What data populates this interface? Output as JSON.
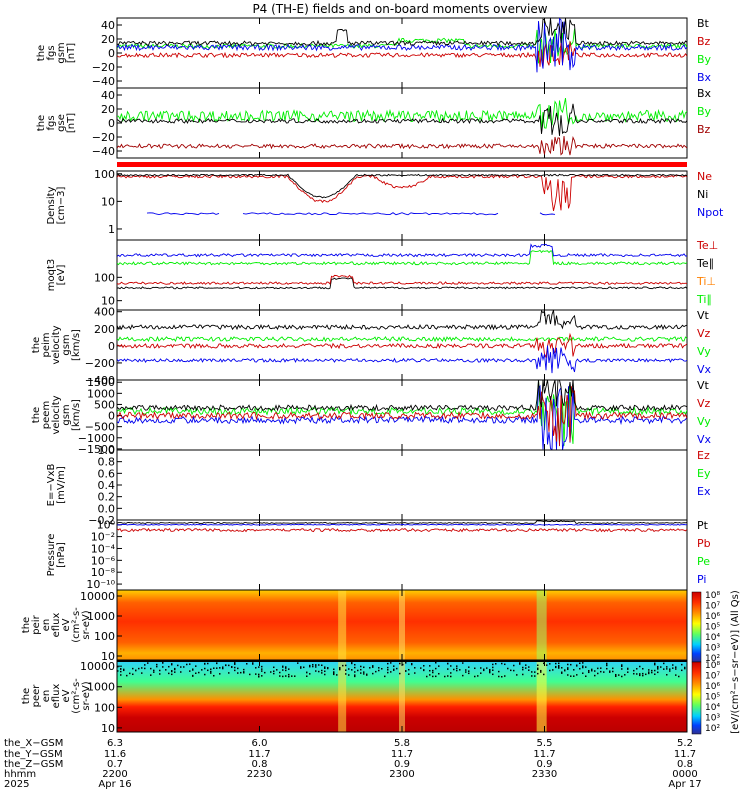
{
  "title": "P4 (TH-E) fields and on-board moments overview",
  "colors": {
    "black": "#000000",
    "red": "#cc0000",
    "dark_red": "#a00000",
    "green": "#00ee00",
    "blue": "#0000ee",
    "dark_blue": "#0000ff",
    "orange": "#ff8000"
  },
  "panels": [
    {
      "id": "fgs_gsm",
      "ylabel": [
        "the",
        "fgs",
        "gsm",
        "[nT]"
      ],
      "ticks": [
        {
          "label": "40",
          "v": 40
        },
        {
          "label": "20",
          "v": 20
        },
        {
          "label": "0",
          "v": 0
        },
        {
          "label": "−20",
          "v": -20
        },
        {
          "label": "−40",
          "v": -40
        }
      ],
      "ylim": [
        -50,
        50
      ],
      "legend": [
        {
          "label": "Bt",
          "color": "black"
        },
        {
          "label": "Bz",
          "color": "red"
        },
        {
          "label": "By",
          "color": "green"
        },
        {
          "label": "Bx",
          "color": "blue"
        }
      ]
    },
    {
      "id": "fgs_gse",
      "ylabel": [
        "the",
        "fgs",
        "gse",
        "[nT]"
      ],
      "ticks": [
        {
          "label": "40",
          "v": 40
        },
        {
          "label": "20",
          "v": 20
        },
        {
          "label": "0",
          "v": 0
        },
        {
          "label": "−20",
          "v": -20
        },
        {
          "label": "−40",
          "v": -40
        }
      ],
      "ylim": [
        -50,
        50
      ],
      "legend": [
        {
          "label": "Bx",
          "color": "black"
        },
        {
          "label": "By",
          "color": "green"
        },
        {
          "label": "Bz",
          "color": "dark_red"
        }
      ]
    },
    {
      "id": "density",
      "ylabel": [
        "Density",
        "[cm−3]"
      ],
      "ticks": [
        {
          "label": "100",
          "v": 2
        },
        {
          "label": "10",
          "v": 1
        },
        {
          "label": "1",
          "v": 0
        }
      ],
      "ylim": [
        -0.4,
        2.1
      ],
      "legend": [
        {
          "label": "Ne",
          "color": "red"
        },
        {
          "label": "Ni",
          "color": "black"
        },
        {
          "label": "Npot",
          "color": "blue"
        }
      ]
    },
    {
      "id": "temp",
      "ylabel": [
        "moqt3",
        "[eV]"
      ],
      "ticks": [
        {
          "label": "100",
          "v": 2
        },
        {
          "label": "10",
          "v": 1
        }
      ],
      "ylim": [
        0.6,
        3.6
      ],
      "legend": [
        {
          "label": "Te⊥",
          "color": "red"
        },
        {
          "label": "Te∥",
          "color": "black"
        },
        {
          "label": "Ti⊥",
          "color": "orange"
        },
        {
          "label": "Ti∥",
          "color": "green"
        }
      ]
    },
    {
      "id": "peim_vel",
      "ylabel": [
        "the",
        "peim",
        "velocity",
        "gsm",
        "[km/s]"
      ],
      "ticks": [
        {
          "label": "400",
          "v": 400
        },
        {
          "label": "200",
          "v": 200
        },
        {
          "label": "0",
          "v": 0
        },
        {
          "label": "−200",
          "v": -200
        },
        {
          "label": "−400",
          "v": -400
        }
      ],
      "ylim": [
        -400,
        420
      ],
      "legend": [
        {
          "label": "Vt",
          "color": "black"
        },
        {
          "label": "Vz",
          "color": "red"
        },
        {
          "label": "Vy",
          "color": "green"
        },
        {
          "label": "Vx",
          "color": "blue"
        }
      ]
    },
    {
      "id": "peem_vel",
      "ylabel": [
        "the",
        "peem",
        "velocity",
        "gsm",
        "[km/s]"
      ],
      "ticks": [
        {
          "label": "1500",
          "v": 1500
        },
        {
          "label": "1000",
          "v": 1000
        },
        {
          "label": "500",
          "v": 500
        },
        {
          "label": "0",
          "v": 0
        },
        {
          "label": "−500",
          "v": -500
        },
        {
          "label": "−1000",
          "v": -1000
        },
        {
          "label": "−1500",
          "v": -1500
        }
      ],
      "ylim": [
        -1550,
        1600
      ],
      "legend": [
        {
          "label": "Vt",
          "color": "black"
        },
        {
          "label": "Vz",
          "color": "red"
        },
        {
          "label": "Vy",
          "color": "green"
        },
        {
          "label": "Vx",
          "color": "blue"
        }
      ]
    },
    {
      "id": "efield",
      "ylabel": [
        "E=−VxB",
        "[mV/m]"
      ],
      "ticks": [
        {
          "label": "1.0",
          "v": 1.0
        },
        {
          "label": "0.8",
          "v": 0.8
        },
        {
          "label": "0.6",
          "v": 0.6
        },
        {
          "label": "0.4",
          "v": 0.4
        },
        {
          "label": "0.2",
          "v": 0.2
        },
        {
          "label": "0.0",
          "v": 0.0
        },
        {
          "label": "−0.2",
          "v": -0.2
        }
      ],
      "ylim": [
        -0.2,
        1.0
      ],
      "legend": [
        {
          "label": "Ez",
          "color": "red"
        },
        {
          "label": "Ey",
          "color": "green"
        },
        {
          "label": "Ex",
          "color": "blue"
        }
      ]
    },
    {
      "id": "pressure",
      "ylabel": [
        "Pressure",
        "[nPa]"
      ],
      "ticks": [
        {
          "label": "10⁰",
          "v": 0
        },
        {
          "label": "10⁻²",
          "v": -2
        },
        {
          "label": "10⁻⁴",
          "v": -4
        },
        {
          "label": "10⁻⁶",
          "v": -6
        },
        {
          "label": "10⁻⁸",
          "v": -8
        },
        {
          "label": "10⁻¹⁰",
          "v": -10
        }
      ],
      "ylim": [
        -11,
        0.8
      ],
      "legend": [
        {
          "label": "Pt",
          "color": "black"
        },
        {
          "label": "Pb",
          "color": "red"
        },
        {
          "label": "Pe",
          "color": "green"
        },
        {
          "label": "Pi",
          "color": "blue"
        }
      ]
    },
    {
      "id": "peir_spec",
      "ylabel": [
        "the",
        "peir",
        "en",
        "eflux",
        "eV",
        "(cm²-s-",
        "sr-eV)"
      ],
      "ticks": [
        {
          "label": "10000",
          "v": 4
        },
        {
          "label": "1000",
          "v": 3
        },
        {
          "label": "100",
          "v": 2
        },
        {
          "label": "10",
          "v": 1
        }
      ],
      "ylim": [
        0.8,
        4.3
      ],
      "legend": []
    },
    {
      "id": "peer_spec",
      "ylabel": [
        "the",
        "peer",
        "en",
        "eflux",
        "eV",
        "(cm²-s-",
        "sr-eV)"
      ],
      "ticks": [
        {
          "label": "10000",
          "v": 4
        },
        {
          "label": "1000",
          "v": 3
        },
        {
          "label": "100",
          "v": 2
        },
        {
          "label": "10",
          "v": 1
        }
      ],
      "ylim": [
        0.8,
        4.3
      ],
      "legend": []
    }
  ],
  "colorbar": {
    "label": "[eV/(cm²−s−sr−eV)] (All Qs)",
    "upper_ticks": [
      "10⁸",
      "10⁷",
      "10⁶",
      "10⁵",
      "10⁴",
      "10³",
      "10²"
    ],
    "lower_ticks": [
      "10⁸",
      "10⁷",
      "10⁶",
      "10⁵",
      "10⁴",
      "10³",
      "10²"
    ]
  },
  "x_axis": {
    "row_labels": [
      "the_X−GSM",
      "the_Y−GSM",
      "the_Z−GSM",
      "hhmm",
      "2025"
    ],
    "columns": [
      {
        "vals": [
          "6.3",
          "11.6",
          "0.7",
          "2200",
          "Apr 16"
        ]
      },
      {
        "vals": [
          "6.0",
          "11.7",
          "0.8",
          "2230",
          ""
        ]
      },
      {
        "vals": [
          "5.8",
          "11.7",
          "0.9",
          "2300",
          ""
        ]
      },
      {
        "vals": [
          "5.5",
          "11.7",
          "0.9",
          "2330",
          ""
        ]
      },
      {
        "vals": [
          "5.2",
          "11.7",
          "0.8",
          "0000",
          "Apr 17"
        ]
      }
    ]
  },
  "chart_data": {
    "type": "line",
    "title": "P4 (TH-E) fields and on-board moments overview",
    "x_time_range": [
      "2025-04-16 22:00",
      "2025-04-17 00:00"
    ],
    "series": [
      {
        "name": "Bt",
        "panel": "fgs_gsm",
        "approx_level_nT": 15
      },
      {
        "name": "Bz",
        "panel": "fgs_gsm",
        "approx_level_nT": 0
      },
      {
        "name": "By",
        "panel": "fgs_gsm",
        "approx_level_nT": -5
      },
      {
        "name": "Bx",
        "panel": "fgs_gsm",
        "approx_level_nT": 10
      },
      {
        "name": "Bx",
        "panel": "fgs_gse",
        "approx_level_nT": 5
      },
      {
        "name": "By",
        "panel": "fgs_gse",
        "approx_level_nT": 10
      },
      {
        "name": "Bz",
        "panel": "fgs_gse",
        "approx_level_nT": -33
      },
      {
        "name": "Ne",
        "panel": "density",
        "approx_level_cm3": 80
      },
      {
        "name": "Npot",
        "panel": "density",
        "approx_level_cm3": 4
      },
      {
        "name": "Vt",
        "panel": "peim_vel",
        "approx_level_kms": 220
      },
      {
        "name": "Vx",
        "panel": "peim_vel",
        "approx_level_kms": -170
      }
    ]
  }
}
